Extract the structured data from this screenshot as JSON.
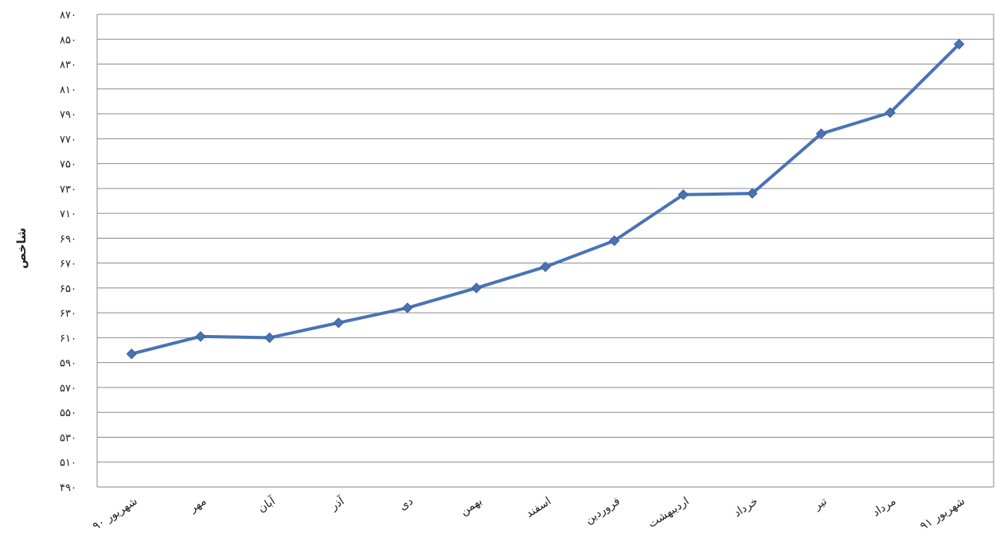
{
  "chart_data": {
    "type": "line",
    "title": "",
    "xlabel": "",
    "ylabel": "شاخص",
    "ylim": [
      490,
      870
    ],
    "yticks": [
      490,
      510,
      530,
      550,
      570,
      590,
      610,
      630,
      650,
      670,
      690,
      710,
      730,
      750,
      770,
      790,
      810,
      830,
      850,
      870
    ],
    "ytick_labels": [
      "۴۹۰",
      "۵۱۰",
      "۵۳۰",
      "۵۵۰",
      "۵۷۰",
      "۵۹۰",
      "۶۱۰",
      "۶۳۰",
      "۶۵۰",
      "۶۷۰",
      "۶۹۰",
      "۷۱۰",
      "۷۳۰",
      "۷۵۰",
      "۷۷۰",
      "۷۹۰",
      "۸۱۰",
      "۸۳۰",
      "۸۵۰",
      "۸۷۰"
    ],
    "categories": [
      "شهریور ۹۰",
      "مهر",
      "آبان",
      "آذر",
      "دی",
      "بهمن",
      "اسفند",
      "فروردین",
      "اردیبهشت",
      "خرداد",
      "تیر",
      "مرداد",
      "شهریور ۹۱"
    ],
    "series": [
      {
        "values": [
          597,
          611,
          610,
          622,
          634,
          650,
          667,
          688,
          725,
          726,
          774,
          791,
          846
        ],
        "color": "#4a73b5"
      }
    ],
    "grid": true,
    "legend": "none"
  }
}
